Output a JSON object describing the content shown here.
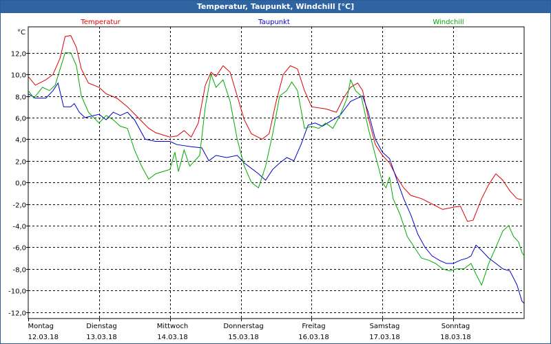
{
  "window": {
    "title": "Temperatur, Taupunkt, Windchill [°C]"
  },
  "chart_data": {
    "type": "line",
    "title": "Temperatur, Taupunkt, Windchill [°C]",
    "ylabel": "°C",
    "ylim": [
      -12.6,
      14.4
    ],
    "yticks": [
      -12,
      -10,
      -8,
      -6,
      -4,
      -2,
      0,
      2,
      4,
      6,
      8,
      10,
      12
    ],
    "ytick_labels": [
      "-12,0",
      "-10,0",
      "-8,0",
      "-6,0",
      "-4,0",
      "-2,0",
      "0,0",
      "2,0",
      "4,0",
      "6,0",
      "8,0",
      "10,0",
      "12,0"
    ],
    "xlim": [
      0,
      7
    ],
    "x_unit": "days since 12.03.18",
    "xticks": [
      0,
      1,
      2,
      3,
      4,
      5,
      6
    ],
    "xtick_days": [
      "Montag",
      "Dienstag",
      "Mittwoch",
      "Donnerstag",
      "Freitag",
      "Samstag",
      "Sonntag"
    ],
    "xtick_dates": [
      "12.03.18",
      "13.03.18",
      "14.03.18",
      "15.03.18",
      "16.03.18",
      "17.03.18",
      "18.03.18"
    ],
    "grid": true,
    "series": [
      {
        "name": "Temperatur",
        "color": "#dd0000",
        "points": [
          [
            0.0,
            9.8
          ],
          [
            0.1,
            9.0
          ],
          [
            0.25,
            9.5
          ],
          [
            0.35,
            10.0
          ],
          [
            0.45,
            11.5
          ],
          [
            0.52,
            13.5
          ],
          [
            0.6,
            13.6
          ],
          [
            0.68,
            12.5
          ],
          [
            0.75,
            10.5
          ],
          [
            0.85,
            9.2
          ],
          [
            1.0,
            8.8
          ],
          [
            1.1,
            8.2
          ],
          [
            1.25,
            7.8
          ],
          [
            1.4,
            7.0
          ],
          [
            1.55,
            6.0
          ],
          [
            1.7,
            5.0
          ],
          [
            1.8,
            4.6
          ],
          [
            2.0,
            4.2
          ],
          [
            2.1,
            4.3
          ],
          [
            2.2,
            4.8
          ],
          [
            2.3,
            4.2
          ],
          [
            2.4,
            5.5
          ],
          [
            2.5,
            9.0
          ],
          [
            2.58,
            10.2
          ],
          [
            2.65,
            9.8
          ],
          [
            2.75,
            10.8
          ],
          [
            2.85,
            10.2
          ],
          [
            2.95,
            8.0
          ],
          [
            3.05,
            5.8
          ],
          [
            3.15,
            4.5
          ],
          [
            3.3,
            4.0
          ],
          [
            3.4,
            4.5
          ],
          [
            3.5,
            7.5
          ],
          [
            3.6,
            10.0
          ],
          [
            3.7,
            10.8
          ],
          [
            3.8,
            10.5
          ],
          [
            3.9,
            8.5
          ],
          [
            4.0,
            7.0
          ],
          [
            4.2,
            6.8
          ],
          [
            4.35,
            6.5
          ],
          [
            4.45,
            7.8
          ],
          [
            4.55,
            8.8
          ],
          [
            4.65,
            9.2
          ],
          [
            4.72,
            8.5
          ],
          [
            4.8,
            6.0
          ],
          [
            4.9,
            3.5
          ],
          [
            5.0,
            2.5
          ],
          [
            5.1,
            1.8
          ],
          [
            5.2,
            0.5
          ],
          [
            5.3,
            -0.5
          ],
          [
            5.4,
            -1.2
          ],
          [
            5.55,
            -1.5
          ],
          [
            5.7,
            -2.0
          ],
          [
            5.85,
            -2.5
          ],
          [
            6.0,
            -2.3
          ],
          [
            6.1,
            -2.2
          ],
          [
            6.2,
            -3.6
          ],
          [
            6.28,
            -3.5
          ],
          [
            6.4,
            -1.5
          ],
          [
            6.5,
            -0.2
          ],
          [
            6.6,
            0.8
          ],
          [
            6.7,
            0.2
          ],
          [
            6.8,
            -0.8
          ],
          [
            6.9,
            -1.5
          ],
          [
            6.97,
            -1.6
          ]
        ]
      },
      {
        "name": "Taupunkt",
        "color": "#0000cc",
        "points": [
          [
            0.0,
            8.2
          ],
          [
            0.1,
            7.8
          ],
          [
            0.25,
            7.8
          ],
          [
            0.35,
            8.5
          ],
          [
            0.42,
            9.2
          ],
          [
            0.5,
            7.0
          ],
          [
            0.6,
            7.0
          ],
          [
            0.65,
            7.3
          ],
          [
            0.72,
            6.5
          ],
          [
            0.8,
            6.0
          ],
          [
            1.0,
            6.3
          ],
          [
            1.1,
            5.8
          ],
          [
            1.2,
            6.5
          ],
          [
            1.3,
            6.2
          ],
          [
            1.4,
            6.5
          ],
          [
            1.5,
            5.8
          ],
          [
            1.65,
            4.0
          ],
          [
            1.8,
            3.8
          ],
          [
            2.0,
            3.8
          ],
          [
            2.1,
            3.5
          ],
          [
            2.3,
            3.3
          ],
          [
            2.45,
            3.2
          ],
          [
            2.55,
            2.0
          ],
          [
            2.65,
            2.5
          ],
          [
            2.8,
            2.3
          ],
          [
            2.95,
            2.5
          ],
          [
            3.05,
            1.8
          ],
          [
            3.15,
            1.3
          ],
          [
            3.25,
            0.8
          ],
          [
            3.35,
            0.2
          ],
          [
            3.45,
            1.2
          ],
          [
            3.55,
            1.8
          ],
          [
            3.65,
            2.3
          ],
          [
            3.75,
            2.0
          ],
          [
            3.85,
            3.5
          ],
          [
            3.95,
            5.3
          ],
          [
            4.05,
            5.5
          ],
          [
            4.15,
            5.2
          ],
          [
            4.3,
            5.8
          ],
          [
            4.4,
            6.2
          ],
          [
            4.55,
            7.5
          ],
          [
            4.65,
            7.8
          ],
          [
            4.72,
            8.0
          ],
          [
            4.8,
            6.5
          ],
          [
            4.9,
            4.0
          ],
          [
            5.0,
            2.8
          ],
          [
            5.1,
            2.2
          ],
          [
            5.2,
            0.3
          ],
          [
            5.3,
            -1.5
          ],
          [
            5.4,
            -3.0
          ],
          [
            5.5,
            -4.8
          ],
          [
            5.6,
            -6.0
          ],
          [
            5.7,
            -6.8
          ],
          [
            5.8,
            -7.2
          ],
          [
            5.9,
            -7.5
          ],
          [
            6.0,
            -7.5
          ],
          [
            6.1,
            -7.2
          ],
          [
            6.2,
            -7.0
          ],
          [
            6.25,
            -6.8
          ],
          [
            6.32,
            -5.8
          ],
          [
            6.4,
            -6.3
          ],
          [
            6.5,
            -7.0
          ],
          [
            6.6,
            -7.5
          ],
          [
            6.7,
            -8.0
          ],
          [
            6.8,
            -8.2
          ],
          [
            6.9,
            -9.5
          ],
          [
            6.97,
            -11.0
          ],
          [
            7.0,
            -11.2
          ]
        ]
      },
      {
        "name": "Windchill",
        "color": "#00aa00",
        "points": [
          [
            0.0,
            8.5
          ],
          [
            0.08,
            7.8
          ],
          [
            0.2,
            8.8
          ],
          [
            0.3,
            8.5
          ],
          [
            0.38,
            9.0
          ],
          [
            0.45,
            10.5
          ],
          [
            0.52,
            12.0
          ],
          [
            0.6,
            12.0
          ],
          [
            0.68,
            10.8
          ],
          [
            0.75,
            8.0
          ],
          [
            0.85,
            6.5
          ],
          [
            1.0,
            5.5
          ],
          [
            1.1,
            6.2
          ],
          [
            1.2,
            5.8
          ],
          [
            1.3,
            5.2
          ],
          [
            1.4,
            5.0
          ],
          [
            1.5,
            3.0
          ],
          [
            1.6,
            1.5
          ],
          [
            1.7,
            0.3
          ],
          [
            1.8,
            0.8
          ],
          [
            1.9,
            1.0
          ],
          [
            2.0,
            1.2
          ],
          [
            2.07,
            2.8
          ],
          [
            2.12,
            1.0
          ],
          [
            2.2,
            3.0
          ],
          [
            2.28,
            1.5
          ],
          [
            2.35,
            2.0
          ],
          [
            2.42,
            2.5
          ],
          [
            2.5,
            7.0
          ],
          [
            2.58,
            10.0
          ],
          [
            2.65,
            8.8
          ],
          [
            2.75,
            9.5
          ],
          [
            2.85,
            7.5
          ],
          [
            2.95,
            4.0
          ],
          [
            3.05,
            1.5
          ],
          [
            3.15,
            0.0
          ],
          [
            3.25,
            -0.5
          ],
          [
            3.35,
            1.5
          ],
          [
            3.45,
            4.5
          ],
          [
            3.55,
            8.0
          ],
          [
            3.65,
            8.5
          ],
          [
            3.72,
            9.3
          ],
          [
            3.8,
            8.5
          ],
          [
            3.9,
            5.0
          ],
          [
            4.0,
            5.2
          ],
          [
            4.1,
            5.0
          ],
          [
            4.2,
            5.5
          ],
          [
            4.3,
            5.0
          ],
          [
            4.4,
            6.2
          ],
          [
            4.5,
            7.8
          ],
          [
            4.55,
            9.5
          ],
          [
            4.62,
            8.5
          ],
          [
            4.7,
            8.0
          ],
          [
            4.8,
            5.0
          ],
          [
            4.9,
            2.5
          ],
          [
            5.0,
            0.0
          ],
          [
            5.05,
            -0.5
          ],
          [
            5.1,
            0.5
          ],
          [
            5.15,
            -1.5
          ],
          [
            5.25,
            -3.0
          ],
          [
            5.35,
            -5.0
          ],
          [
            5.45,
            -6.0
          ],
          [
            5.55,
            -7.0
          ],
          [
            5.65,
            -7.2
          ],
          [
            5.75,
            -7.5
          ],
          [
            5.85,
            -8.0
          ],
          [
            5.95,
            -8.2
          ],
          [
            6.05,
            -8.0
          ],
          [
            6.15,
            -8.0
          ],
          [
            6.25,
            -7.5
          ],
          [
            6.32,
            -8.5
          ],
          [
            6.4,
            -9.5
          ],
          [
            6.5,
            -7.5
          ],
          [
            6.6,
            -6.0
          ],
          [
            6.7,
            -4.5
          ],
          [
            6.78,
            -4.0
          ],
          [
            6.85,
            -5.0
          ],
          [
            6.92,
            -5.5
          ],
          [
            6.97,
            -6.5
          ],
          [
            7.0,
            -6.8
          ]
        ]
      }
    ]
  }
}
